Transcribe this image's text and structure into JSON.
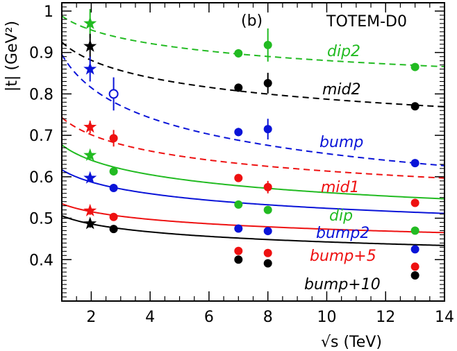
{
  "chart_data": {
    "type": "scatter",
    "panel_label": "(b)",
    "annotation": "TOTEM-D0",
    "xlabel": "√s   (TeV)",
    "ylabel": "|t|   (GeV²)",
    "xlim": [
      1,
      14
    ],
    "ylim": [
      0.3,
      1.02
    ],
    "x_ticks": [
      2,
      4,
      6,
      8,
      10,
      12,
      14
    ],
    "y_ticks": [
      0.4,
      0.5,
      0.6,
      0.7,
      0.8,
      0.9,
      1
    ],
    "x_tick_labels": [
      "2",
      "4",
      "6",
      "8",
      "10",
      "12",
      "14"
    ],
    "y_tick_labels": [
      "0.4",
      "0.5",
      "0.6",
      "0.7",
      "0.8",
      "0.9",
      "1"
    ],
    "series": [
      {
        "name": "dip2",
        "color": "#22bb22",
        "line": "dashed",
        "curve": {
          "a": 0.988,
          "b": -0.05
        },
        "stars": [
          {
            "x": 1.96,
            "y": 0.97,
            "err": 0.035
          }
        ],
        "points": [
          {
            "x": 2.76,
            "y": null,
            "err": null
          },
          {
            "x": 7,
            "y": 0.898,
            "err": 0.01
          },
          {
            "x": 8,
            "y": 0.918,
            "err": 0.04
          },
          {
            "x": 13,
            "y": 0.865,
            "err": 0.008
          }
        ]
      },
      {
        "name": "mid2",
        "color": "#000000",
        "line": "dashed",
        "curve": {
          "a": 0.925,
          "b": -0.07
        },
        "stars": [
          {
            "x": 1.96,
            "y": 0.915,
            "err": 0.03
          }
        ],
        "points": [
          {
            "x": 7,
            "y": 0.815,
            "err": 0.008
          },
          {
            "x": 8,
            "y": 0.826,
            "err": 0.025
          },
          {
            "x": 13,
            "y": 0.77,
            "err": 0.008
          }
        ]
      },
      {
        "name": "bump",
        "color": "#0a14d8",
        "line": "dashed",
        "curve": {
          "a": 0.895,
          "b": -0.135
        },
        "stars": [
          {
            "x": 1.96,
            "y": 0.86,
            "err": 0.03
          }
        ],
        "open_points": [
          {
            "x": 2.76,
            "y": 0.8,
            "err": 0.04
          }
        ],
        "points": [
          {
            "x": 7,
            "y": 0.708,
            "err": 0.01
          },
          {
            "x": 8,
            "y": 0.715,
            "err": 0.025
          },
          {
            "x": 13,
            "y": 0.633,
            "err": 0.008
          }
        ]
      },
      {
        "name": "mid1",
        "color": "#ee1111",
        "line": "dashed",
        "curve": {
          "a": 0.743,
          "b": -0.083
        },
        "stars": [
          {
            "x": 1.96,
            "y": 0.72,
            "err": 0.015
          }
        ],
        "points": [
          {
            "x": 2.76,
            "y": 0.693,
            "err": 0.02
          },
          {
            "x": 7,
            "y": 0.597,
            "err": 0.008
          },
          {
            "x": 8,
            "y": 0.575,
            "err": 0.015
          },
          {
            "x": 13,
            "y": 0.537,
            "err": 0.008
          }
        ]
      },
      {
        "name": "dip",
        "color": "#22bb22",
        "line": "solid",
        "curve": {
          "a": 0.677,
          "b": -0.081
        },
        "stars": [
          {
            "x": 1.96,
            "y": 0.652,
            "err": 0.01
          }
        ],
        "points": [
          {
            "x": 2.76,
            "y": 0.613,
            "err": 0.008
          },
          {
            "x": 7,
            "y": 0.533,
            "err": 0.006
          },
          {
            "x": 8,
            "y": 0.52,
            "err": 0.006
          },
          {
            "x": 13,
            "y": 0.47,
            "err": 0.006
          }
        ]
      },
      {
        "name": "bump2",
        "color": "#0a14d8",
        "line": "solid",
        "curve": {
          "a": 0.617,
          "b": -0.071
        },
        "stars": [
          {
            "x": 1.96,
            "y": 0.597,
            "err": 0.01
          }
        ],
        "points": [
          {
            "x": 2.76,
            "y": 0.573,
            "err": 0.008
          },
          {
            "x": 7,
            "y": 0.475,
            "err": 0.006
          },
          {
            "x": 8,
            "y": 0.469,
            "err": 0.006
          },
          {
            "x": 13,
            "y": 0.425,
            "err": 0.006
          }
        ]
      },
      {
        "name": "bump+5",
        "color": "#ee1111",
        "line": "solid",
        "curve": {
          "a": 0.535,
          "b": -0.053
        },
        "stars": [
          {
            "x": 1.96,
            "y": 0.518,
            "err": 0.01
          }
        ],
        "points": [
          {
            "x": 2.76,
            "y": 0.503,
            "err": 0.008
          },
          {
            "x": 7,
            "y": 0.421,
            "err": 0.006
          },
          {
            "x": 8,
            "y": 0.416,
            "err": 0.006
          },
          {
            "x": 13,
            "y": 0.383,
            "err": 0.006
          }
        ]
      },
      {
        "name": "bump+10",
        "color": "#000000",
        "line": "solid",
        "curve": {
          "a": 0.506,
          "b": -0.058
        },
        "stars": [
          {
            "x": 1.96,
            "y": 0.487,
            "err": 0.01
          }
        ],
        "points": [
          {
            "x": 2.76,
            "y": 0.474,
            "err": 0.006
          },
          {
            "x": 7,
            "y": 0.4,
            "err": 0.006
          },
          {
            "x": 8,
            "y": 0.391,
            "err": 0.006
          },
          {
            "x": 13,
            "y": 0.362,
            "err": 0.006
          }
        ]
      }
    ],
    "series_labels": [
      "dip2",
      "mid2",
      "bump",
      "mid1",
      "dip",
      "bump2",
      "bump+5",
      "bump+10"
    ]
  }
}
